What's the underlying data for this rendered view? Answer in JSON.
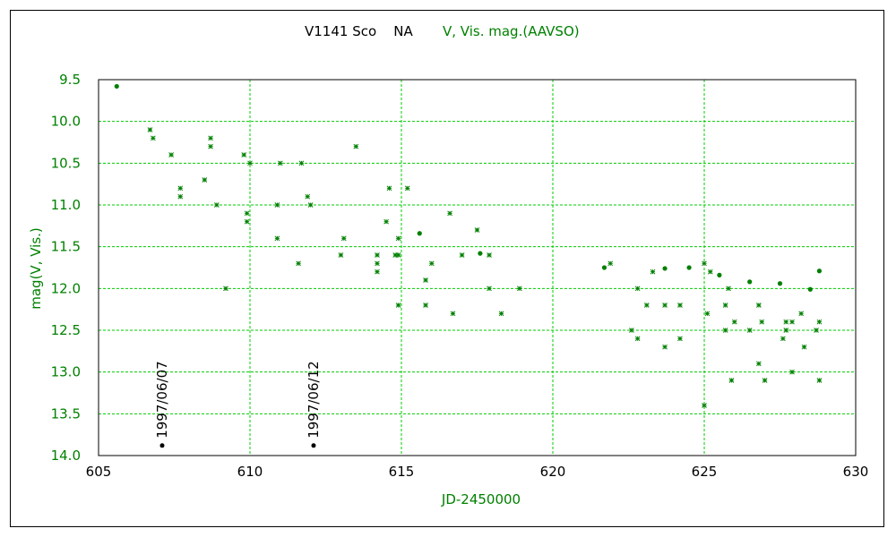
{
  "chart_data": {
    "type": "scatter",
    "title": "V1141 Sco    NA",
    "series_label": "V, Vis. mag.(AAVSO)",
    "xlabel": "JD-2450000",
    "ylabel": "mag(V, Vis.)",
    "xlim": [
      605,
      630
    ],
    "ylim": [
      14.0,
      9.5
    ],
    "y_inverted": true,
    "grid": true,
    "xticks": [
      "605",
      "610",
      "615",
      "620",
      "625",
      "630"
    ],
    "yticks": [
      "9.5",
      "10.0",
      "10.5",
      "11.0",
      "11.5",
      "12.0",
      "12.5",
      "13.0",
      "13.5",
      "14.0"
    ],
    "colors": {
      "series": "#008000",
      "grid": "#00cc00",
      "markers": "#000000"
    },
    "series": [
      {
        "name": "V",
        "marker": "dot",
        "points": [
          [
            605.6,
            9.58
          ],
          [
            615.6,
            11.34
          ],
          [
            617.6,
            11.58
          ],
          [
            621.7,
            11.75
          ],
          [
            623.7,
            11.76
          ],
          [
            624.5,
            11.75
          ],
          [
            625.5,
            11.84
          ],
          [
            626.5,
            11.92
          ],
          [
            627.5,
            11.94
          ],
          [
            628.5,
            12.01
          ],
          [
            628.8,
            11.79
          ]
        ]
      },
      {
        "name": "Vis.",
        "marker": "asterisk",
        "points": [
          [
            606.7,
            10.1
          ],
          [
            606.8,
            10.2
          ],
          [
            607.4,
            10.4
          ],
          [
            607.7,
            10.8
          ],
          [
            607.7,
            10.9
          ],
          [
            608.5,
            10.7
          ],
          [
            608.7,
            10.2
          ],
          [
            608.7,
            10.3
          ],
          [
            608.9,
            11.0
          ],
          [
            609.2,
            12.0
          ],
          [
            609.8,
            10.4
          ],
          [
            609.9,
            11.1
          ],
          [
            609.9,
            11.2
          ],
          [
            610.0,
            10.5
          ],
          [
            610.9,
            11.0
          ],
          [
            610.9,
            11.4
          ],
          [
            611.0,
            10.5
          ],
          [
            611.6,
            11.7
          ],
          [
            611.7,
            10.5
          ],
          [
            611.9,
            10.9
          ],
          [
            612.0,
            11.0
          ],
          [
            613.0,
            11.6
          ],
          [
            613.1,
            11.4
          ],
          [
            613.5,
            10.3
          ],
          [
            614.2,
            11.6
          ],
          [
            614.2,
            11.7
          ],
          [
            614.2,
            11.8
          ],
          [
            614.5,
            11.2
          ],
          [
            614.6,
            10.8
          ],
          [
            614.8,
            11.6
          ],
          [
            614.9,
            12.2
          ],
          [
            614.9,
            11.4
          ],
          [
            614.9,
            11.6
          ],
          [
            615.2,
            10.8
          ],
          [
            615.8,
            11.9
          ],
          [
            615.8,
            12.2
          ],
          [
            616.0,
            11.7
          ],
          [
            616.6,
            11.1
          ],
          [
            616.7,
            12.3
          ],
          [
            617.0,
            11.6
          ],
          [
            617.5,
            11.3
          ],
          [
            617.9,
            11.6
          ],
          [
            617.9,
            12.0
          ],
          [
            618.3,
            12.3
          ],
          [
            618.9,
            12.0
          ],
          [
            621.9,
            11.7
          ],
          [
            622.6,
            12.5
          ],
          [
            622.8,
            12.6
          ],
          [
            622.8,
            12.0
          ],
          [
            623.1,
            12.2
          ],
          [
            623.3,
            11.8
          ],
          [
            623.7,
            12.7
          ],
          [
            623.7,
            12.2
          ],
          [
            624.2,
            12.6
          ],
          [
            624.2,
            12.2
          ],
          [
            625.0,
            11.7
          ],
          [
            625.0,
            13.4
          ],
          [
            625.1,
            12.3
          ],
          [
            625.2,
            11.8
          ],
          [
            625.7,
            12.5
          ],
          [
            625.7,
            12.2
          ],
          [
            625.8,
            12.0
          ],
          [
            625.9,
            13.1
          ],
          [
            626.0,
            12.4
          ],
          [
            626.5,
            12.5
          ],
          [
            626.8,
            12.2
          ],
          [
            626.8,
            12.9
          ],
          [
            626.9,
            12.4
          ],
          [
            627.0,
            13.1
          ],
          [
            627.6,
            12.6
          ],
          [
            627.7,
            12.4
          ],
          [
            627.7,
            12.5
          ],
          [
            627.9,
            12.4
          ],
          [
            627.9,
            13.0
          ],
          [
            628.2,
            12.3
          ],
          [
            628.3,
            12.7
          ],
          [
            628.7,
            12.5
          ],
          [
            628.8,
            12.4
          ],
          [
            628.8,
            13.1
          ]
        ]
      }
    ],
    "annotations": [
      {
        "text": "1997/06/07",
        "x": 607.1,
        "y": 13.88
      },
      {
        "text": "1997/06/12",
        "x": 612.1,
        "y": 13.88
      }
    ]
  }
}
